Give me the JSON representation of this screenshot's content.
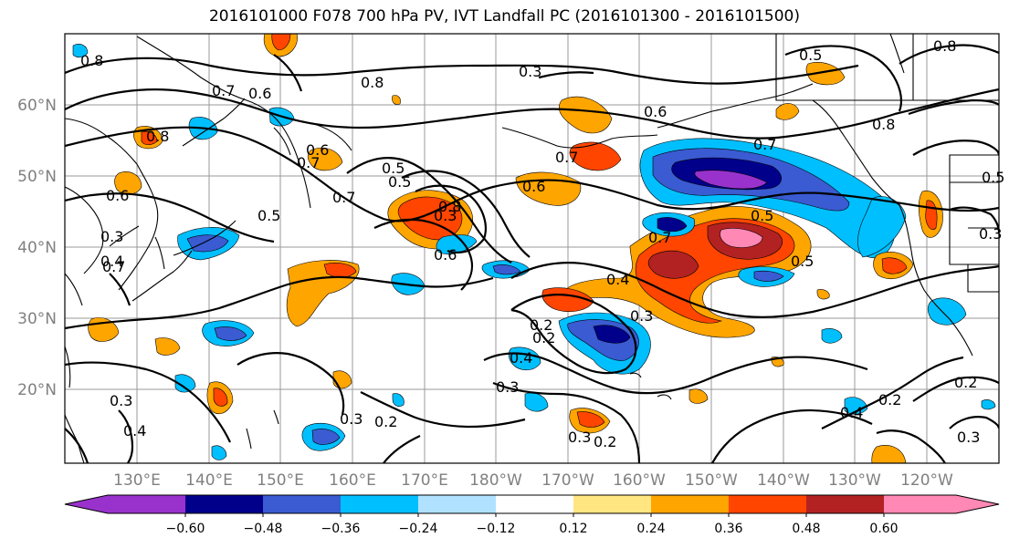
{
  "title": "2016101000 F078 700 hPa PV, IVT Landfall PC (2016101300 - 2016101500)",
  "map": {
    "latitude_labels": [
      "60°N",
      "50°N",
      "40°N",
      "30°N",
      "20°N"
    ],
    "longitude_labels": [
      "130°E",
      "140°E",
      "150°E",
      "160°E",
      "170°E",
      "180°W",
      "170°W",
      "160°W",
      "150°W",
      "140°W",
      "130°W",
      "120°W"
    ],
    "contour_labels": [
      "0.8",
      "0.6",
      "0.7",
      "0.8",
      "0.3",
      "0.8",
      "0.7",
      "0.5",
      "0.6",
      "0.7",
      "0.5",
      "0.6",
      "0.5",
      "0.7",
      "0.5",
      "0.8",
      "0.8",
      "0.6",
      "0.7",
      "0.6",
      "0.5",
      "0.5",
      "0.4",
      "0.3",
      "0.2",
      "0.4",
      "0.3",
      "0.3",
      "0.3",
      "0.2",
      "0.3",
      "0.2",
      "0.2",
      "0.4",
      "0.2",
      "0.3",
      "0.4",
      "0.3",
      "0.7",
      "0.6",
      "0.4",
      "0.2",
      "0.8",
      "0.7",
      "0.3",
      "0.5",
      "0.3"
    ]
  },
  "colorbar": {
    "tick_labels": [
      "−0.60",
      "−0.48",
      "−0.36",
      "−0.24",
      "−0.12",
      "0.12",
      "0.24",
      "0.36",
      "0.48",
      "0.60"
    ],
    "colors": [
      "#9932cc",
      "#00008b",
      "#3a5bd1",
      "#00bfff",
      "#b0e2ff",
      "#ffffff",
      "#ffe680",
      "#ffa500",
      "#ff4500",
      "#b22222",
      "#ff88b5"
    ]
  }
}
